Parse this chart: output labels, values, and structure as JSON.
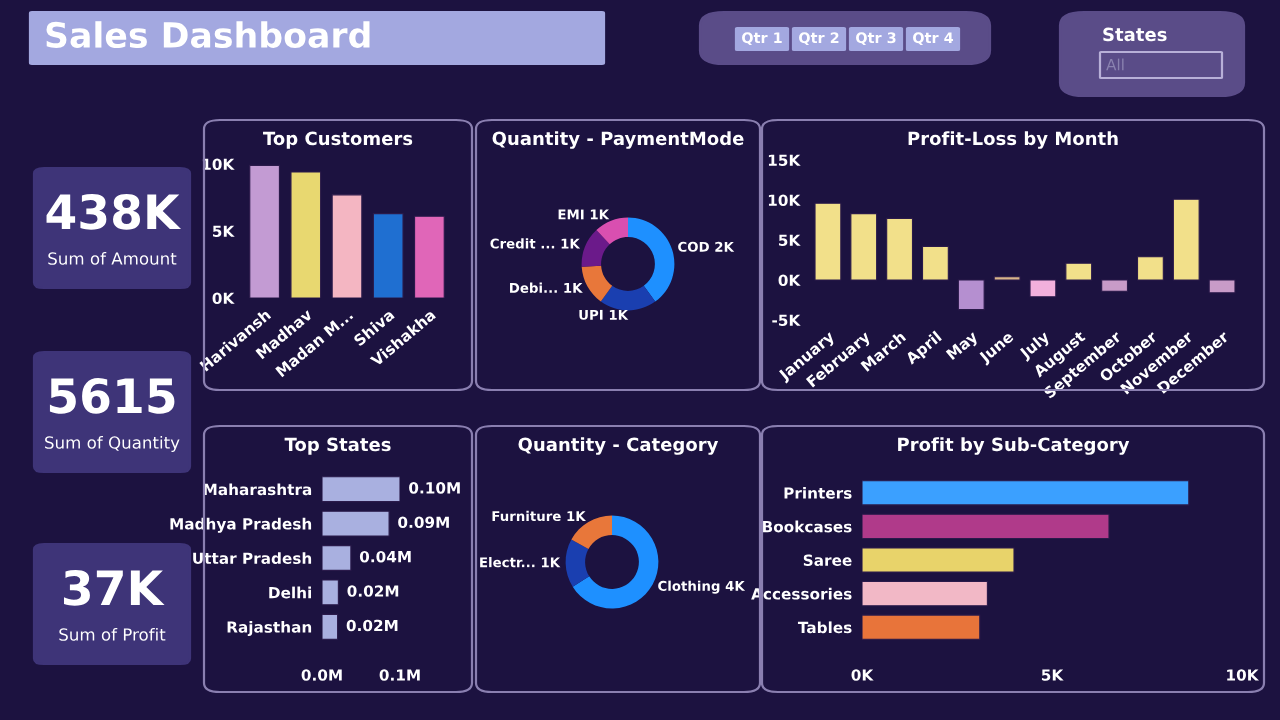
{
  "chart_data": [
    {
      "type": "other",
      "title": "Sales Dashboard"
    },
    {
      "type": "other",
      "annotations": [
        "Qtr 1",
        "Qtr 2",
        "Qtr 3",
        "Qtr 4"
      ]
    },
    {
      "type": "other",
      "title": "States",
      "annotations": [
        "All"
      ]
    },
    {
      "type": "other",
      "annotations": [
        "438K",
        "Sum of Amount"
      ]
    },
    {
      "type": "other",
      "annotations": [
        "5615",
        "Sum of Quantity"
      ]
    },
    {
      "type": "other",
      "annotations": [
        "37K",
        "Sum of Profit"
      ]
    },
    {
      "type": "bar",
      "title": "Top Customers",
      "categories": [
        "Harivansh",
        "Madhav",
        "Madan M...",
        "Shiva",
        "Vishakha"
      ],
      "values": [
        9900,
        9400,
        7700,
        6300,
        6100
      ],
      "colors": [
        "#c39bd3",
        "#e8d870",
        "#f4b6c2",
        "#1f6fd1",
        "#e066b8"
      ],
      "ylim": [
        0,
        10000
      ],
      "yticks": [
        {
          "value": 0,
          "label": "0K"
        },
        {
          "value": 5000,
          "label": "5K"
        },
        {
          "value": 10000,
          "label": "10K"
        }
      ]
    },
    {
      "type": "donut",
      "title": "Quantity - PaymentMode",
      "categories": [
        "COD",
        "UPI",
        "Debi...",
        "Credit ...",
        "EMI"
      ],
      "values": [
        2250,
        1120,
        790,
        790,
        670
      ],
      "value_labels": [
        "2K",
        "1K",
        "1K",
        "1K",
        "1K"
      ],
      "colors": [
        "#1e90ff",
        "#1a3fb0",
        "#e8773a",
        "#6b1a8a",
        "#d94fb0"
      ]
    },
    {
      "type": "bar",
      "title": "Profit-Loss by Month",
      "categories": [
        "January",
        "February",
        "March",
        "April",
        "May",
        "June",
        "July",
        "August",
        "September",
        "October",
        "November",
        "December"
      ],
      "values": [
        9600,
        8300,
        7700,
        4200,
        -3700,
        400,
        -2100,
        2100,
        -1400,
        2900,
        10100,
        -1600
      ],
      "colors": [
        "#f2e08a",
        "#f2e08a",
        "#f2e08a",
        "#f2e08a",
        "#b58fd0",
        "#d8b48a",
        "#f2b0dc",
        "#f2e08a",
        "#c89bc8",
        "#f2e08a",
        "#f2e08a",
        "#c89bc8"
      ],
      "ylim": [
        -5000,
        15000
      ],
      "yticks": [
        {
          "value": -5000,
          "label": "-5K"
        },
        {
          "value": 0,
          "label": "0K"
        },
        {
          "value": 5000,
          "label": "5K"
        },
        {
          "value": 10000,
          "label": "10K"
        },
        {
          "value": 15000,
          "label": "15K"
        }
      ]
    },
    {
      "type": "bar",
      "orientation": "horizontal",
      "title": "Top States",
      "categories": [
        "Maharashtra",
        "Madhya Pradesh",
        "Uttar Pradesh",
        "Delhi",
        "Rajasthan"
      ],
      "values": [
        0.1,
        0.086,
        0.037,
        0.021,
        0.02
      ],
      "value_labels": [
        "0.10M",
        "0.09M",
        "0.04M",
        "0.02M",
        "0.02M"
      ],
      "color": "#a9b0e0",
      "xlim": [
        0,
        0.1
      ],
      "xticks": [
        {
          "value": 0,
          "label": "0.0M"
        },
        {
          "value": 0.1,
          "label": "0.1M"
        }
      ]
    },
    {
      "type": "donut",
      "title": "Quantity - Category",
      "categories": [
        "Clothing",
        "Electr...",
        "Furniture"
      ],
      "values": [
        3700,
        950,
        950
      ],
      "value_labels": [
        "4K",
        "1K",
        "1K"
      ],
      "colors": [
        "#1e90ff",
        "#1a3fb0",
        "#e8773a"
      ]
    },
    {
      "type": "bar",
      "orientation": "horizontal",
      "title": "Profit by Sub-Category",
      "categories": [
        "Printers",
        "Bookcases",
        "Saree",
        "Accessories",
        "Tables"
      ],
      "values": [
        8600,
        6500,
        4000,
        3300,
        3100
      ],
      "colors": [
        "#3ba0ff",
        "#b03a8a",
        "#e8d36a",
        "#f2b8c6",
        "#e8743a"
      ],
      "xlim": [
        0,
        10000
      ],
      "xticks": [
        {
          "value": 0,
          "label": "0K"
        },
        {
          "value": 5000,
          "label": "5K"
        },
        {
          "value": 10000,
          "label": "10K"
        }
      ]
    }
  ]
}
